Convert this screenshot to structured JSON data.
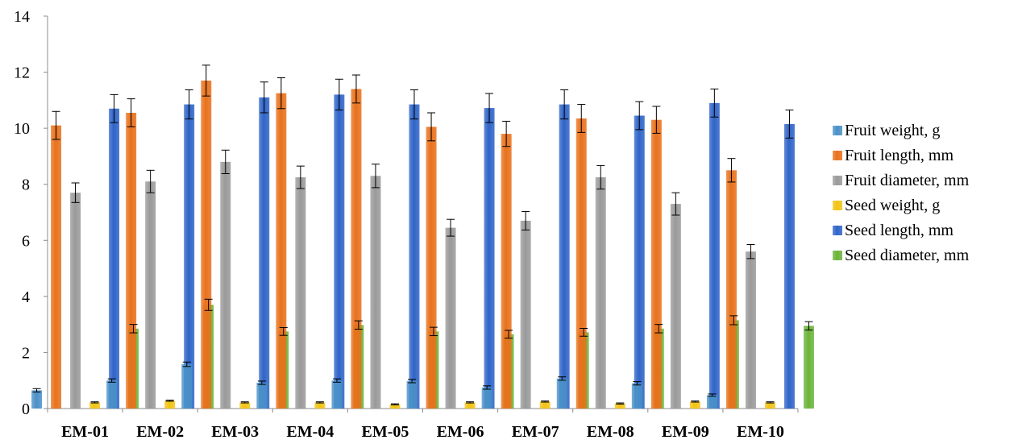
{
  "chart_data": {
    "type": "bar",
    "title": "",
    "xlabel": "",
    "ylabel": "",
    "ylim": [
      0,
      14
    ],
    "yticks": [
      0,
      2,
      4,
      6,
      8,
      10,
      12,
      14
    ],
    "grid": false,
    "legend_position": "right",
    "categories": [
      "EM-01",
      "EM-02",
      "EM-03",
      "EM-04",
      "EM-05",
      "EM-06",
      "EM-07",
      "EM-08",
      "EM-09",
      "EM-10"
    ],
    "series": [
      {
        "name": "Fruit weight, g",
        "color": "#4a90c8",
        "values": [
          0.65,
          1.0,
          1.58,
          0.92,
          1.0,
          0.98,
          0.75,
          1.07,
          0.9,
          0.48
        ],
        "errors": [
          0.06,
          0.06,
          0.08,
          0.06,
          0.06,
          0.06,
          0.06,
          0.06,
          0.06,
          0.04
        ]
      },
      {
        "name": "Fruit length, mm",
        "color": "#e8711c",
        "values": [
          10.1,
          10.55,
          11.7,
          11.25,
          11.4,
          10.05,
          9.8,
          10.35,
          10.3,
          8.5
        ],
        "errors": [
          0.5,
          0.5,
          0.55,
          0.55,
          0.5,
          0.5,
          0.45,
          0.5,
          0.48,
          0.42
        ]
      },
      {
        "name": "Fruit diameter, mm",
        "color": "#9a9a9a",
        "values": [
          7.7,
          8.1,
          8.8,
          8.25,
          8.3,
          6.45,
          6.7,
          8.25,
          7.3,
          5.6
        ],
        "errors": [
          0.35,
          0.4,
          0.42,
          0.4,
          0.42,
          0.3,
          0.33,
          0.42,
          0.4,
          0.25
        ]
      },
      {
        "name": "Seed weight, g",
        "color": "#f2c314",
        "values": [
          0.22,
          0.28,
          0.22,
          0.22,
          0.15,
          0.22,
          0.25,
          0.18,
          0.25,
          0.22
        ],
        "errors": [
          0.02,
          0.02,
          0.02,
          0.02,
          0.02,
          0.02,
          0.02,
          0.02,
          0.02,
          0.02
        ]
      },
      {
        "name": "Seed length, mm",
        "color": "#2f64c8",
        "values": [
          10.7,
          10.85,
          11.1,
          11.2,
          10.85,
          10.72,
          10.85,
          10.45,
          10.9,
          10.15
        ],
        "errors": [
          0.5,
          0.52,
          0.55,
          0.55,
          0.52,
          0.52,
          0.52,
          0.5,
          0.5,
          0.5
        ]
      },
      {
        "name": "Seed diameter, mm",
        "color": "#6cb43a",
        "values": [
          2.85,
          3.7,
          2.75,
          2.98,
          2.75,
          2.65,
          2.72,
          2.85,
          3.15,
          2.95
        ],
        "errors": [
          0.15,
          0.2,
          0.14,
          0.15,
          0.15,
          0.14,
          0.14,
          0.15,
          0.16,
          0.15
        ]
      }
    ]
  }
}
